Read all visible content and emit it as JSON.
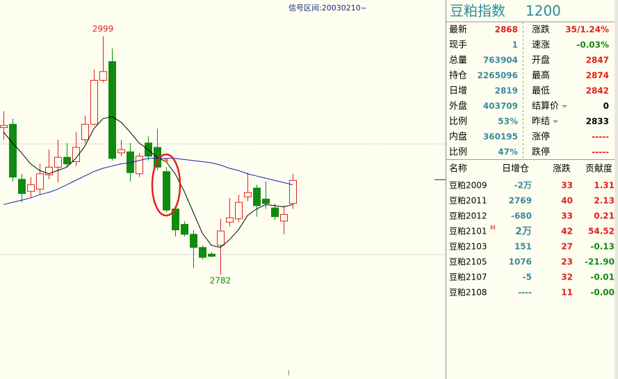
{
  "signal_range": "信号区间:20030210~",
  "chart_data": {
    "type": "candlestick",
    "open": [
      2916,
      2919,
      2869,
      2858,
      2860,
      2873,
      2880,
      2889,
      2885,
      2905,
      2919,
      2959,
      2976,
      2893,
      2894,
      2874,
      2902,
      2898,
      2876,
      2842,
      2828,
      2819,
      2807,
      2801,
      2809,
      2830,
      2833,
      2853,
      2861,
      2851,
      2843,
      2831,
      2847
    ],
    "high": [
      2931,
      2924,
      2874,
      2871,
      2883,
      2896,
      2905,
      2902,
      2912,
      2927,
      2969,
      2999,
      2988,
      2905,
      2902,
      2893,
      2908,
      2915,
      2880,
      2843,
      2831,
      2823,
      2809,
      2803,
      2833,
      2852,
      2855,
      2875,
      2864,
      2867,
      2847,
      2845,
      2874
    ],
    "low": [
      2905,
      2867,
      2848,
      2852,
      2855,
      2869,
      2866,
      2880,
      2881,
      2902,
      2918,
      2957,
      2886,
      2890,
      2867,
      2871,
      2886,
      2877,
      2839,
      2817,
      2817,
      2788,
      2796,
      2798,
      2782,
      2826,
      2830,
      2849,
      2835,
      2842,
      2832,
      2819,
      2842
    ],
    "close": [
      2918,
      2871,
      2856,
      2864,
      2874,
      2880,
      2889,
      2883,
      2898,
      2919,
      2959,
      2967,
      2888,
      2896,
      2875,
      2890,
      2890,
      2880,
      2841,
      2823,
      2819,
      2807,
      2798,
      2799,
      2822,
      2834,
      2848,
      2857,
      2845,
      2847,
      2835,
      2837,
      2868
    ],
    "ma_short": [
      2912,
      2902,
      2893,
      2883,
      2877,
      2874,
      2877,
      2880,
      2888,
      2899,
      2915,
      2924,
      2926,
      2921,
      2912,
      2902,
      2896,
      2889,
      2885,
      2874,
      2858,
      2839,
      2820,
      2809,
      2807,
      2814,
      2823,
      2836,
      2842,
      2846,
      2845,
      2844,
      2846
    ],
    "ma_long": [
      2846,
      2848,
      2850,
      2852,
      2855,
      2857,
      2860,
      2864,
      2868,
      2872,
      2876,
      2879,
      2881,
      2883,
      2884,
      2886,
      2888,
      2888,
      2888,
      2888,
      2887,
      2886,
      2885,
      2884,
      2882,
      2879,
      2877,
      2874,
      2872,
      2870,
      2868,
      2866,
      2864
    ],
    "ylim": [
      2750,
      3020
    ]
  },
  "quote": {
    "title": "豆粕指数",
    "code": "1200",
    "rows": [
      [
        "最新",
        "2868",
        "涨跌",
        "35/1.24%"
      ],
      [
        "现手",
        "1",
        "速涨",
        "-0.03%"
      ],
      [
        "总量",
        "763904",
        "开盘",
        "2847"
      ],
      [
        "持仓",
        "2265096",
        "最高",
        "2874"
      ],
      [
        "日增",
        "2819",
        "最低",
        "2842"
      ],
      [
        "外盘",
        "403709",
        "结算价",
        "0"
      ],
      [
        "比例",
        "53%",
        "昨结",
        "2833"
      ],
      [
        "内盘",
        "360195",
        "涨停",
        "-----"
      ],
      [
        "比例",
        "47%",
        "跌停",
        "-----"
      ]
    ]
  },
  "contracts": {
    "header": [
      "名称",
      "日增仓",
      "涨跌",
      "贡献度"
    ],
    "rows": [
      {
        "name": "豆粕2009",
        "change_oi": "-2万",
        "change": "33",
        "contribution": "1.31"
      },
      {
        "name": "豆粕2011",
        "change_oi": "2769",
        "change": "40",
        "contribution": "2.13"
      },
      {
        "name": "豆粕2012",
        "change_oi": "-680",
        "change": "33",
        "contribution": "0.21"
      },
      {
        "name": "豆粕2101",
        "flag": "M",
        "change_oi": "2万",
        "change": "42",
        "contribution": "54.52"
      },
      {
        "name": "豆粕2103",
        "change_oi": "151",
        "change": "27",
        "contribution": "-0.13"
      },
      {
        "name": "豆粕2105",
        "change_oi": "1076",
        "change": "23",
        "contribution": "-21.90"
      },
      {
        "name": "豆粕2107",
        "change_oi": "-5",
        "change": "32",
        "contribution": "-0.01"
      },
      {
        "name": "豆粕2108",
        "change_oi": "----",
        "change": "11",
        "contribution": "-0.00"
      }
    ]
  }
}
